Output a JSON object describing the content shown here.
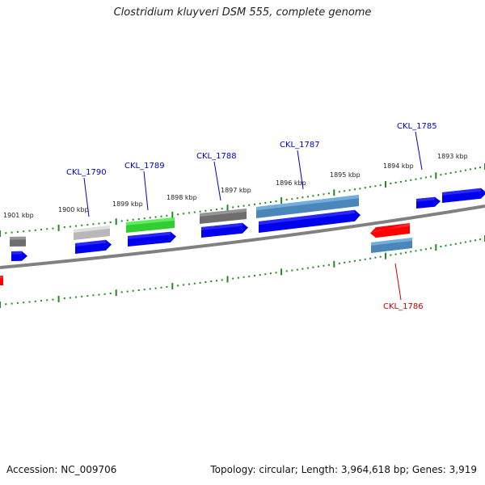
{
  "title": "Clostridium kluyveri DSM 555, complete genome",
  "footer": {
    "accession": "Accession: NC_009706",
    "summary": "Topology: circular; Length: 3,964,618 bp; Genes: 3,919"
  },
  "colors": {
    "backbone": "#808080",
    "tick": "#228b22",
    "gene_label_forward": "#0000cc",
    "gene_label_reverse": "#cc0000",
    "cds": "#0000ee",
    "gray_feature": "#6e6e6e",
    "light_gray_feature": "#b8b8b8",
    "green_feature": "#33cc33",
    "steelblue_feature": "#4a86b8",
    "red_feature": "#ff0000"
  },
  "scale_labels": [
    "1901 kbp",
    "1900 kbp",
    "1899 kbp",
    "1898 kbp",
    "1897 kbp",
    "1896 kbp",
    "1895 kbp",
    "1894 kbp",
    "1893 kbp"
  ],
  "gene_labels": [
    {
      "text": "CKL_1790",
      "strand": "forward"
    },
    {
      "text": "CKL_1789",
      "strand": "forward"
    },
    {
      "text": "CKL_1788",
      "strand": "forward"
    },
    {
      "text": "CKL_1787",
      "strand": "forward"
    },
    {
      "text": "CKL_1785",
      "strand": "forward"
    },
    {
      "text": "CKL_1786",
      "strand": "reverse"
    }
  ],
  "features": [
    {
      "name": "gray-feature",
      "color": "gray_feature"
    },
    {
      "name": "cds-arrow",
      "color": "cds"
    },
    {
      "name": "light-gray-feature",
      "color": "light_gray_feature"
    },
    {
      "name": "cds-arrow",
      "color": "cds"
    },
    {
      "name": "green-feature",
      "color": "green_feature"
    },
    {
      "name": "cds-arrow",
      "color": "cds"
    },
    {
      "name": "gray-feature",
      "color": "gray_feature"
    },
    {
      "name": "cds-arrow",
      "color": "cds"
    },
    {
      "name": "steelblue-feature",
      "color": "steelblue_feature"
    },
    {
      "name": "cds-arrow",
      "color": "cds"
    },
    {
      "name": "cds-arrow",
      "color": "cds"
    },
    {
      "name": "cds-arrow",
      "color": "cds"
    },
    {
      "name": "red-feature",
      "color": "red_feature"
    },
    {
      "name": "steelblue-feature",
      "color": "steelblue_feature"
    },
    {
      "name": "red-feature",
      "color": "red_feature"
    }
  ]
}
